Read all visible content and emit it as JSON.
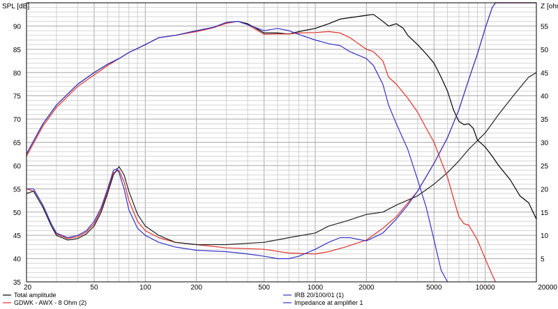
{
  "chart_data": {
    "type": "line",
    "xscale": "log",
    "xlim": [
      20,
      20000
    ],
    "ylim_left": [
      35,
      95
    ],
    "ylim_right": [
      0,
      60
    ],
    "ylabel_left": "SPL [dB]",
    "ylabel_right": "Z [ohm]",
    "grid": true,
    "legend_position": "bottom",
    "x_ticks": [
      {
        "value": 20,
        "label": "20"
      },
      {
        "value": 50,
        "label": "50"
      },
      {
        "value": 100,
        "label": "100"
      },
      {
        "value": 200,
        "label": "200"
      },
      {
        "value": 500,
        "label": "500"
      },
      {
        "value": 1000,
        "label": "1000"
      },
      {
        "value": 2000,
        "label": "2000"
      },
      {
        "value": 5000,
        "label": "5000"
      },
      {
        "value": 10000,
        "label": "10000"
      },
      {
        "value": 20000,
        "label": "20000"
      }
    ],
    "y_ticks_left": [
      {
        "value": 35,
        "label": "35"
      },
      {
        "value": 40,
        "label": "40"
      },
      {
        "value": 45,
        "label": "45"
      },
      {
        "value": 50,
        "label": "50"
      },
      {
        "value": 55,
        "label": "55"
      },
      {
        "value": 60,
        "label": "60"
      },
      {
        "value": 65,
        "label": "65"
      },
      {
        "value": 70,
        "label": "70"
      },
      {
        "value": 75,
        "label": "75"
      },
      {
        "value": 80,
        "label": "80"
      },
      {
        "value": 85,
        "label": "85"
      },
      {
        "value": 90,
        "label": "90"
      }
    ],
    "y_ticks_right": [
      {
        "value": 5,
        "label": "5"
      },
      {
        "value": 10,
        "label": "10"
      },
      {
        "value": 15,
        "label": "15"
      },
      {
        "value": 20,
        "label": "20"
      },
      {
        "value": 25,
        "label": "25"
      },
      {
        "value": 30,
        "label": "30"
      },
      {
        "value": 35,
        "label": "35"
      },
      {
        "value": 40,
        "label": "40"
      },
      {
        "value": 45,
        "label": "45"
      },
      {
        "value": 50,
        "label": "50"
      },
      {
        "value": 55,
        "label": "55"
      }
    ],
    "series": [
      {
        "name": "Total amplitude",
        "axis": "left",
        "color": "#000000",
        "points": [
          [
            20,
            62.5
          ],
          [
            25,
            69
          ],
          [
            30,
            73
          ],
          [
            40,
            77.5
          ],
          [
            50,
            80
          ],
          [
            60,
            81.8
          ],
          [
            70,
            83
          ],
          [
            80,
            84.3
          ],
          [
            100,
            86
          ],
          [
            120,
            87.5
          ],
          [
            150,
            88
          ],
          [
            200,
            89
          ],
          [
            250,
            89.7
          ],
          [
            300,
            90.6
          ],
          [
            350,
            91
          ],
          [
            400,
            90.5
          ],
          [
            450,
            89.5
          ],
          [
            500,
            88.5
          ],
          [
            600,
            88.5
          ],
          [
            700,
            88.3
          ],
          [
            800,
            88.8
          ],
          [
            1000,
            89.5
          ],
          [
            1200,
            90.5
          ],
          [
            1400,
            91.5
          ],
          [
            1600,
            91.8
          ],
          [
            2000,
            92.3
          ],
          [
            2200,
            92.5
          ],
          [
            2500,
            91
          ],
          [
            2700,
            90
          ],
          [
            3000,
            90.5
          ],
          [
            3300,
            89.5
          ],
          [
            3500,
            88
          ],
          [
            4000,
            86
          ],
          [
            4500,
            84
          ],
          [
            5000,
            82
          ],
          [
            5500,
            79
          ],
          [
            6000,
            76
          ],
          [
            6500,
            72
          ],
          [
            7000,
            69.5
          ],
          [
            7500,
            68.8
          ],
          [
            8000,
            69
          ],
          [
            8500,
            68
          ],
          [
            9000,
            65.5
          ],
          [
            10000,
            64
          ],
          [
            11000,
            62
          ],
          [
            12000,
            60
          ],
          [
            14000,
            57
          ],
          [
            16000,
            53.5
          ],
          [
            18000,
            52
          ],
          [
            20000,
            48.5
          ]
        ]
      },
      {
        "name": "GDWK - AWX - 8 Ohm (2)",
        "axis": "left",
        "color": "#e0302a",
        "points": [
          [
            20,
            62
          ],
          [
            25,
            68.5
          ],
          [
            30,
            72.5
          ],
          [
            40,
            77
          ],
          [
            50,
            79.5
          ],
          [
            60,
            81.5
          ],
          [
            70,
            83
          ],
          [
            80,
            84.3
          ],
          [
            100,
            86
          ],
          [
            120,
            87.5
          ],
          [
            150,
            88
          ],
          [
            200,
            88.8
          ],
          [
            250,
            89.6
          ],
          [
            300,
            90.6
          ],
          [
            350,
            91
          ],
          [
            400,
            90.3
          ],
          [
            500,
            88.2
          ],
          [
            600,
            88.3
          ],
          [
            700,
            88.3
          ],
          [
            800,
            88.5
          ],
          [
            1000,
            88.6
          ],
          [
            1200,
            88.8
          ],
          [
            1400,
            88.5
          ],
          [
            1600,
            87.5
          ],
          [
            2000,
            85
          ],
          [
            2200,
            84.5
          ],
          [
            2500,
            82.5
          ],
          [
            2700,
            79
          ],
          [
            3000,
            77.5
          ],
          [
            3500,
            74.5
          ],
          [
            4000,
            71.5
          ],
          [
            4500,
            68
          ],
          [
            5000,
            65
          ],
          [
            5500,
            61
          ],
          [
            6000,
            57.5
          ],
          [
            6500,
            53
          ],
          [
            7000,
            49
          ],
          [
            7500,
            47.5
          ],
          [
            8000,
            47.2
          ],
          [
            9000,
            44
          ],
          [
            10000,
            40
          ],
          [
            11000,
            36.5
          ],
          [
            11500,
            35
          ]
        ]
      },
      {
        "name": "IRB 20/100/01 (1)",
        "axis": "left",
        "color": "#3333cc",
        "points": [
          [
            20,
            62.5
          ],
          [
            25,
            69
          ],
          [
            30,
            73
          ],
          [
            40,
            77.5
          ],
          [
            50,
            80
          ],
          [
            60,
            81.8
          ],
          [
            70,
            83
          ],
          [
            80,
            84.3
          ],
          [
            100,
            86
          ],
          [
            120,
            87.5
          ],
          [
            150,
            88
          ],
          [
            200,
            89
          ],
          [
            250,
            89.7
          ],
          [
            300,
            90.8
          ],
          [
            350,
            91
          ],
          [
            400,
            90.3
          ],
          [
            500,
            89
          ],
          [
            600,
            89.5
          ],
          [
            700,
            89
          ],
          [
            800,
            88.2
          ],
          [
            1000,
            87
          ],
          [
            1200,
            86.2
          ],
          [
            1400,
            85.8
          ],
          [
            1600,
            84.5
          ],
          [
            2000,
            83
          ],
          [
            2200,
            81.5
          ],
          [
            2500,
            77.5
          ],
          [
            2700,
            73
          ],
          [
            3000,
            69
          ],
          [
            3500,
            63.5
          ],
          [
            4000,
            57
          ],
          [
            4500,
            51
          ],
          [
            5000,
            44
          ],
          [
            5500,
            37.5
          ],
          [
            6000,
            35
          ]
        ]
      },
      {
        "name": "Impedance at amplifier 1",
        "axis": "right",
        "color": "#3333cc",
        "points": [
          [
            20,
            20
          ],
          [
            22,
            20
          ],
          [
            25,
            16.5
          ],
          [
            28,
            12.5
          ],
          [
            30,
            10.5
          ],
          [
            35,
            9.5
          ],
          [
            40,
            10
          ],
          [
            45,
            11
          ],
          [
            50,
            13
          ],
          [
            55,
            16
          ],
          [
            60,
            20
          ],
          [
            65,
            24
          ],
          [
            68,
            24.3
          ],
          [
            70,
            23.5
          ],
          [
            75,
            20
          ],
          [
            80,
            15.5
          ],
          [
            90,
            11.5
          ],
          [
            100,
            10
          ],
          [
            120,
            8.5
          ],
          [
            150,
            7.5
          ],
          [
            200,
            6.8
          ],
          [
            300,
            6.5
          ],
          [
            400,
            6
          ],
          [
            500,
            5.5
          ],
          [
            600,
            5
          ],
          [
            700,
            5
          ],
          [
            800,
            5.5
          ],
          [
            1000,
            7
          ],
          [
            1200,
            8.5
          ],
          [
            1400,
            9.5
          ],
          [
            1600,
            9.5
          ],
          [
            2000,
            8.8
          ],
          [
            2500,
            10.5
          ],
          [
            3000,
            13.5
          ],
          [
            3500,
            16.5
          ],
          [
            4000,
            19.5
          ],
          [
            5000,
            25.5
          ],
          [
            6000,
            31
          ],
          [
            7000,
            37
          ],
          [
            8000,
            43.5
          ],
          [
            9000,
            49
          ],
          [
            10000,
            54.5
          ],
          [
            11000,
            59
          ],
          [
            11500,
            60
          ],
          [
            20000,
            60
          ]
        ]
      }
    ],
    "extra_lines_right": [
      {
        "name": "impedance-red",
        "color": "#e0302a",
        "points": [
          [
            20,
            20
          ],
          [
            22,
            19.5
          ],
          [
            25,
            16
          ],
          [
            28,
            12
          ],
          [
            30,
            10.3
          ],
          [
            35,
            9.3
          ],
          [
            40,
            9.7
          ],
          [
            45,
            10.7
          ],
          [
            50,
            12.5
          ],
          [
            55,
            15.5
          ],
          [
            60,
            19.5
          ],
          [
            65,
            23.5
          ],
          [
            70,
            24
          ],
          [
            75,
            21.5
          ],
          [
            80,
            17.5
          ],
          [
            90,
            13
          ],
          [
            100,
            11
          ],
          [
            120,
            9.5
          ],
          [
            150,
            8.5
          ],
          [
            200,
            8
          ],
          [
            300,
            7.3
          ],
          [
            500,
            7
          ],
          [
            700,
            6.2
          ],
          [
            1000,
            6
          ],
          [
            1200,
            6.5
          ],
          [
            1500,
            7.5
          ],
          [
            2000,
            9
          ],
          [
            2500,
            11.5
          ],
          [
            3000,
            14
          ],
          [
            4000,
            19.5
          ],
          [
            5000,
            25.5
          ],
          [
            6000,
            31
          ],
          [
            7000,
            37
          ],
          [
            8000,
            43.5
          ],
          [
            9000,
            49
          ],
          [
            10000,
            54.5
          ],
          [
            11000,
            59
          ],
          [
            11500,
            60
          ],
          [
            20000,
            60
          ]
        ]
      },
      {
        "name": "impedance-black",
        "color": "#222222",
        "points": [
          [
            20,
            19
          ],
          [
            22,
            19.5
          ],
          [
            25,
            16
          ],
          [
            28,
            12
          ],
          [
            30,
            10
          ],
          [
            35,
            9
          ],
          [
            40,
            9.3
          ],
          [
            45,
            10.3
          ],
          [
            50,
            12
          ],
          [
            55,
            15
          ],
          [
            60,
            19
          ],
          [
            65,
            23
          ],
          [
            70,
            24.8
          ],
          [
            75,
            23
          ],
          [
            80,
            19.5
          ],
          [
            90,
            14.5
          ],
          [
            100,
            12
          ],
          [
            120,
            10
          ],
          [
            150,
            8.5
          ],
          [
            200,
            8
          ],
          [
            300,
            8
          ],
          [
            500,
            8.5
          ],
          [
            700,
            9.5
          ],
          [
            1000,
            10.5
          ],
          [
            1200,
            12
          ],
          [
            1500,
            13
          ],
          [
            2000,
            14.5
          ],
          [
            2500,
            15
          ],
          [
            3000,
            16.5
          ],
          [
            4000,
            18.5
          ],
          [
            5000,
            21
          ],
          [
            6000,
            23.5
          ],
          [
            7000,
            26
          ],
          [
            8000,
            28.5
          ],
          [
            10000,
            32
          ],
          [
            12000,
            36
          ],
          [
            15000,
            40.5
          ],
          [
            18000,
            44
          ],
          [
            20000,
            45
          ]
        ]
      }
    ]
  }
}
